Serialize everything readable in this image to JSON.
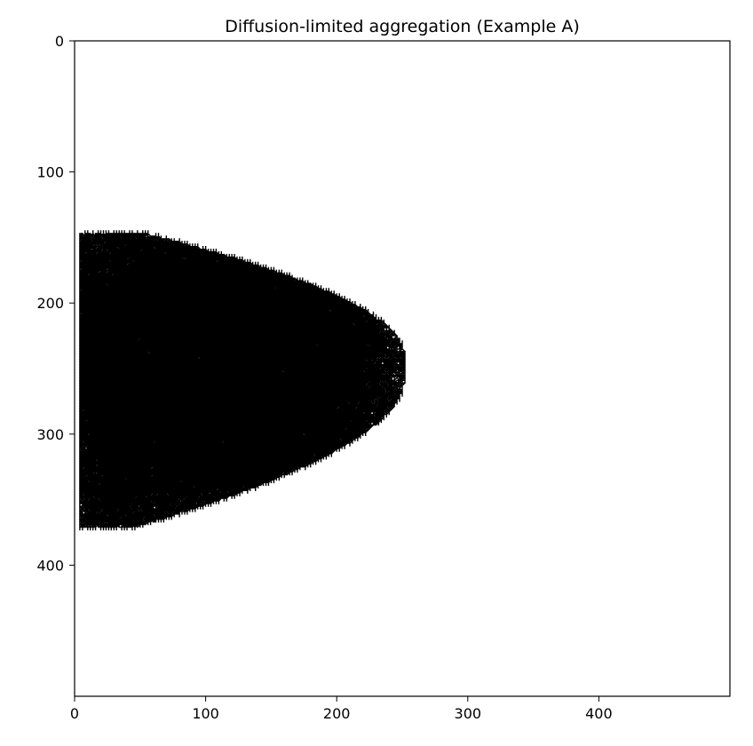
{
  "chart_data": {
    "type": "heatmap",
    "title": "Diffusion-limited aggregation (Example A)",
    "xlabel": "",
    "ylabel": "",
    "xlim": [
      0,
      500
    ],
    "ylim": [
      500,
      0
    ],
    "x_ticks": [
      0,
      100,
      200,
      300,
      400
    ],
    "y_ticks": [
      0,
      100,
      200,
      300,
      400
    ],
    "grid": false,
    "colormap": "binary",
    "cluster": {
      "seed_point": [
        252,
        249
      ],
      "extent_x": [
        3,
        252
      ],
      "extent_y": [
        146,
        372
      ],
      "color": "#000000"
    }
  }
}
